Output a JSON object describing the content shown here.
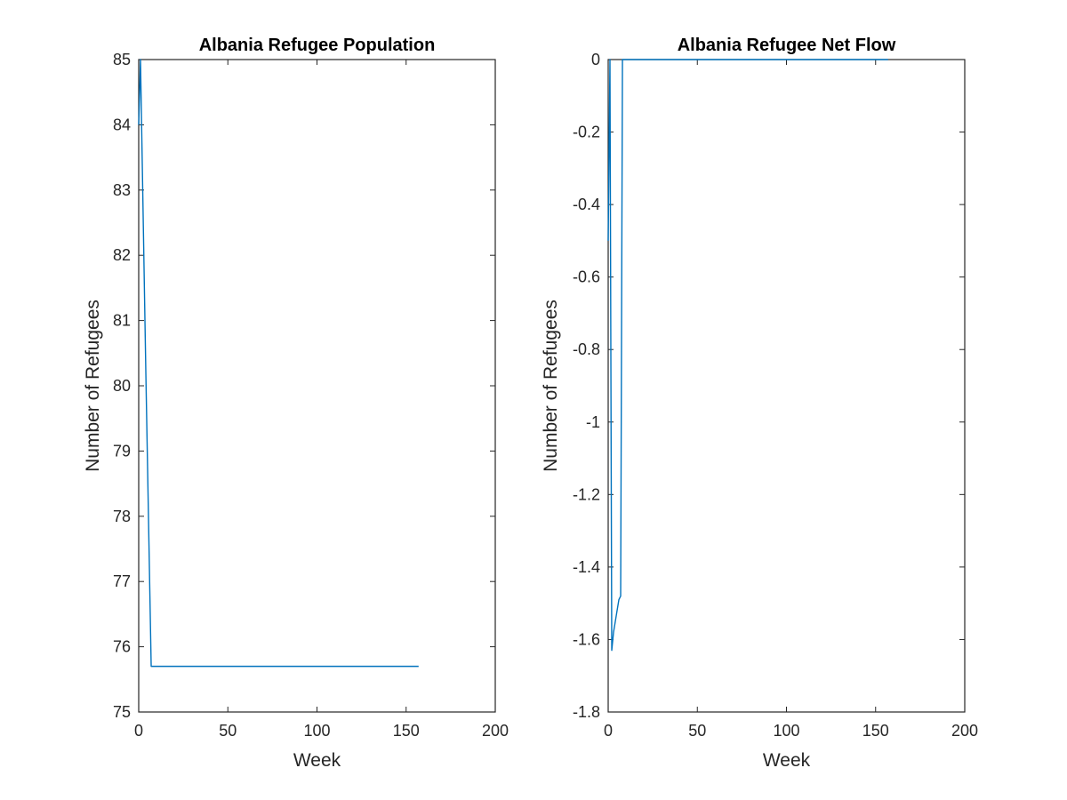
{
  "chart_data": [
    {
      "type": "line",
      "title": "Albania Refugee Population",
      "xlabel": "Week",
      "ylabel": "Number of Refugees",
      "xlim": [
        0,
        200
      ],
      "ylim": [
        75,
        85
      ],
      "xticks": [
        0,
        50,
        100,
        150,
        200
      ],
      "yticks": [
        75,
        76,
        77,
        78,
        79,
        80,
        81,
        82,
        83,
        84,
        85
      ],
      "xtick_labels": [
        "0",
        "50",
        "100",
        "150",
        "200"
      ],
      "ytick_labels": [
        "75",
        "76",
        "77",
        "78",
        "79",
        "80",
        "81",
        "82",
        "83",
        "84",
        "85"
      ],
      "grid": false,
      "color": "#0072BD",
      "series": [
        {
          "x": [
            0,
            1,
            2,
            3,
            4,
            5,
            6,
            7,
            8,
            157
          ],
          "y": [
            84.0,
            85.0,
            83.4,
            81.8,
            80.2,
            78.7,
            77.2,
            75.7,
            75.7,
            75.7
          ]
        }
      ]
    },
    {
      "type": "line",
      "title": "Albania Refugee Net Flow",
      "xlabel": "Week",
      "ylabel": "Number of Refugees",
      "xlim": [
        0,
        200
      ],
      "ylim": [
        -1.8,
        0
      ],
      "xticks": [
        0,
        50,
        100,
        150,
        200
      ],
      "yticks": [
        -1.8,
        -1.6,
        -1.4,
        -1.2,
        -1,
        -0.8,
        -0.6,
        -0.4,
        -0.2,
        0
      ],
      "xtick_labels": [
        "0",
        "50",
        "100",
        "150",
        "200"
      ],
      "ytick_labels": [
        "-1.8",
        "-1.6",
        "-1.4",
        "-1.2",
        "-1",
        "-0.8",
        "-0.6",
        "-0.4",
        "-0.2",
        "0"
      ],
      "grid": false,
      "color": "#0072BD",
      "series": [
        {
          "x": [
            0,
            1,
            2,
            3,
            4,
            5,
            6,
            7,
            8,
            157
          ],
          "y": [
            -0.5,
            0,
            -1.63,
            -1.58,
            -1.55,
            -1.52,
            -1.49,
            -1.48,
            0,
            0
          ]
        }
      ]
    }
  ]
}
